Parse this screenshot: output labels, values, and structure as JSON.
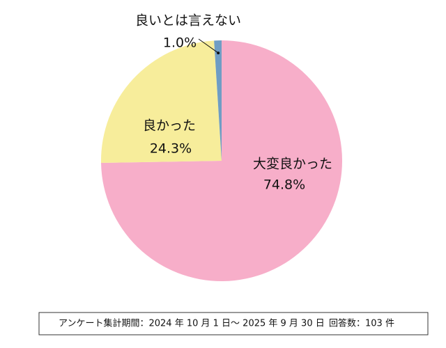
{
  "chart_data": {
    "type": "pie",
    "categories": [
      "大変良かった",
      "良かった",
      "良いとは言えない"
    ],
    "values": [
      74.8,
      24.3,
      1.0
    ],
    "value_labels": [
      "74.8%",
      "24.3%",
      "1.0%"
    ],
    "colors": [
      "#f7aec9",
      "#f7ed9b",
      "#6f9dc4"
    ]
  },
  "footer": {
    "period": "アンケート集計期間：2024 年 10 月 1 日～ 2025 年 9 月 30 日",
    "responses": "回答数：103 件"
  }
}
